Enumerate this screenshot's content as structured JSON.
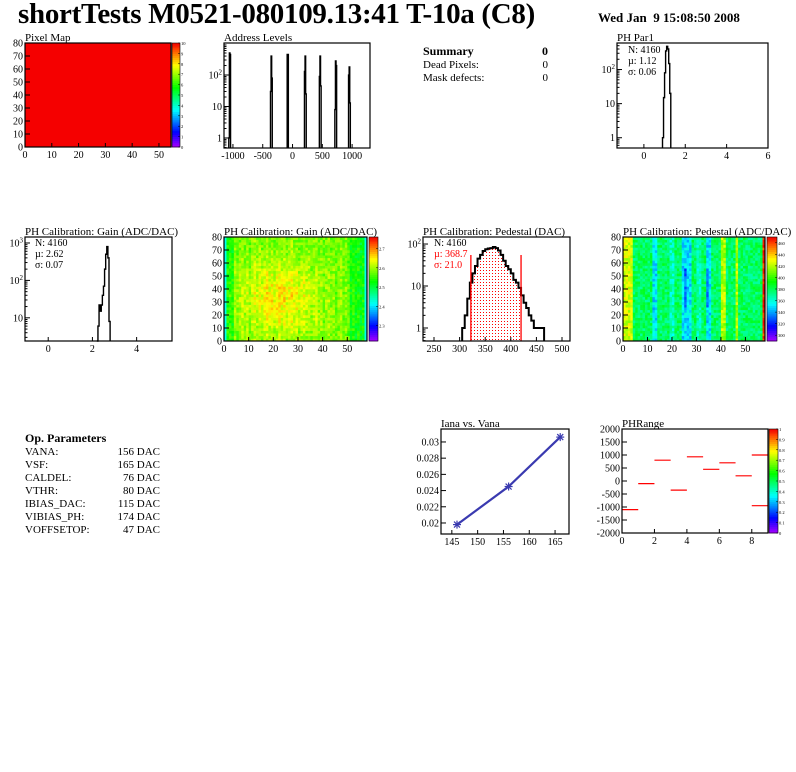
{
  "header": {
    "title": "shortTests M0521-080109.13:41 T-10a (C8)",
    "date": "Wed Jan  9 15:08:50 2008"
  },
  "summary": {
    "title": "Summary",
    "value": "0",
    "rows": [
      {
        "label": "Dead Pixels:",
        "value": "0"
      },
      {
        "label": "Mask defects:",
        "value": "0"
      }
    ]
  },
  "op_parameters": {
    "title": "Op. Parameters",
    "rows": [
      {
        "label": "VANA:",
        "value": "156 DAC"
      },
      {
        "label": "VSF:",
        "value": "165 DAC"
      },
      {
        "label": "CALDEL:",
        "value": "76 DAC"
      },
      {
        "label": "VTHR:",
        "value": "80 DAC"
      },
      {
        "label": "IBIAS_DAC:",
        "value": "115 DAC"
      },
      {
        "label": "VIBIAS_PH:",
        "value": "174 DAC"
      },
      {
        "label": "VOFFSETOP:",
        "value": "47 DAC"
      }
    ]
  },
  "colors": {
    "histogram_line": "#000000",
    "pedestal_fit": "#ff0000",
    "iana_line": "#3a3ab0",
    "phrange_line": "#ff0000"
  },
  "chart_data": [
    {
      "id": "pixel_map",
      "type": "heatmap",
      "title": "Pixel Map",
      "xlim": [
        0,
        54.5
      ],
      "ylim": [
        0,
        80
      ],
      "xticks": [
        0,
        10,
        20,
        30,
        40,
        50
      ],
      "yticks": [
        0,
        10,
        20,
        30,
        40,
        50,
        60,
        70,
        80
      ],
      "zlim": [
        0,
        10
      ],
      "zticks": [
        0,
        1,
        2,
        3,
        4,
        5,
        6,
        7,
        8,
        9,
        10
      ],
      "uniform_value": 10
    },
    {
      "id": "address_levels",
      "type": "bar",
      "title": "Address Levels",
      "xlim": [
        -1150,
        1300
      ],
      "ylim": [
        0.48,
        1040
      ],
      "log_y": true,
      "xticks": [
        -1000,
        -500,
        0,
        500,
        1000
      ],
      "yticks": [
        1,
        10,
        100
      ],
      "ytick_labels": [
        "1",
        "10",
        "10^2"
      ],
      "bin_width": 10,
      "bins": [
        [
          -1070,
          1
        ],
        [
          -1060,
          500
        ],
        [
          -1050,
          450
        ],
        [
          -370,
          30
        ],
        [
          -360,
          400
        ],
        [
          -350,
          80
        ],
        [
          -90,
          450
        ],
        [
          -80,
          450
        ],
        [
          200,
          130
        ],
        [
          210,
          400
        ],
        [
          220,
          25
        ],
        [
          450,
          90
        ],
        [
          460,
          400
        ],
        [
          470,
          45
        ],
        [
          710,
          8
        ],
        [
          720,
          280
        ],
        [
          730,
          200
        ],
        [
          940,
          100
        ],
        [
          950,
          180
        ],
        [
          960,
          13
        ]
      ]
    },
    {
      "id": "ph_par1",
      "type": "bar",
      "title": "PH Par1",
      "xlim": [
        -1.3,
        6
      ],
      "ylim": [
        0.5,
        600
      ],
      "log_y": true,
      "xticks": [
        0,
        2,
        4,
        6
      ],
      "yticks": [
        1,
        10,
        100
      ],
      "ytick_labels": [
        "1",
        "10",
        "10^2"
      ],
      "bin_width": 0.05,
      "bins": [
        [
          0.9,
          1
        ],
        [
          0.95,
          15
        ],
        [
          1.0,
          80
        ],
        [
          1.05,
          350
        ],
        [
          1.1,
          480
        ],
        [
          1.15,
          400
        ],
        [
          1.2,
          150
        ],
        [
          1.25,
          20
        ]
      ],
      "stats": [
        "N: 4160",
        "µ: 1.12",
        "σ: 0.06"
      ]
    },
    {
      "id": "gain_hist",
      "type": "bar",
      "title": "PH Calibration: Gain (ADC/DAC)",
      "xlim": [
        -1.05,
        5.6
      ],
      "ylim": [
        2.4,
        1445
      ],
      "log_y": true,
      "xticks": [
        0,
        2,
        4
      ],
      "yticks": [
        10,
        100,
        1000
      ],
      "ytick_labels": [
        "10",
        "10^2",
        "10^3"
      ],
      "bin_width": 0.05,
      "bins": [
        [
          2.2,
          2
        ],
        [
          2.25,
          6
        ],
        [
          2.3,
          22
        ],
        [
          2.35,
          15
        ],
        [
          2.4,
          22
        ],
        [
          2.45,
          40
        ],
        [
          2.5,
          70
        ],
        [
          2.55,
          200
        ],
        [
          2.6,
          500
        ],
        [
          2.65,
          800
        ],
        [
          2.7,
          400
        ],
        [
          2.75,
          8
        ]
      ],
      "stats": [
        "N: 4160",
        "µ: 2.62",
        "σ: 0.07"
      ]
    },
    {
      "id": "gain_map",
      "type": "heatmap",
      "title": "PH Calibration: Gain (ADC/DAC)",
      "xlim": [
        0,
        58
      ],
      "ylim": [
        0,
        80
      ],
      "xticks": [
        0,
        10,
        20,
        30,
        40,
        50
      ],
      "yticks": [
        0,
        10,
        20,
        30,
        40,
        50,
        60,
        70,
        80
      ],
      "zlim": [
        2.22,
        2.76
      ],
      "zticks": [
        2.3,
        2.4,
        2.5,
        2.6,
        2.7
      ],
      "mean": 2.62
    },
    {
      "id": "pedestal_hist",
      "type": "bar",
      "title": "PH Calibration: Pedestal (DAC)",
      "xlim": [
        228.5,
        515.6
      ],
      "ylim": [
        0.49,
        147
      ],
      "log_y": true,
      "xticks": [
        250,
        300,
        350,
        400,
        450,
        500
      ],
      "yticks": [
        1,
        10,
        100
      ],
      "ytick_labels": [
        "1",
        "10",
        "10^2"
      ],
      "bin_width": 5,
      "bins": [
        [
          305,
          1
        ],
        [
          310,
          2
        ],
        [
          315,
          5
        ],
        [
          320,
          12
        ],
        [
          325,
          20
        ],
        [
          330,
          30
        ],
        [
          335,
          45
        ],
        [
          340,
          55
        ],
        [
          345,
          68
        ],
        [
          350,
          75
        ],
        [
          355,
          78
        ],
        [
          360,
          80
        ],
        [
          365,
          85
        ],
        [
          370,
          80
        ],
        [
          375,
          70
        ],
        [
          380,
          55
        ],
        [
          385,
          40
        ],
        [
          390,
          30
        ],
        [
          395,
          25
        ],
        [
          400,
          20
        ],
        [
          405,
          14
        ],
        [
          410,
          12
        ],
        [
          415,
          9
        ],
        [
          420,
          6
        ],
        [
          425,
          4
        ],
        [
          430,
          3
        ],
        [
          435,
          2
        ],
        [
          440,
          1.5
        ],
        [
          445,
          1
        ],
        [
          450,
          1
        ],
        [
          455,
          1
        ],
        [
          460,
          1
        ]
      ],
      "fit_range": [
        322,
        420
      ],
      "stats": [
        "N: 4160",
        "µ: 368.7",
        "σ: 21.0"
      ]
    },
    {
      "id": "pedestal_map",
      "type": "heatmap",
      "title": "PH Calibration: Pedestal (ADC/DAC)",
      "xlim": [
        0,
        58
      ],
      "ylim": [
        0,
        80
      ],
      "xticks": [
        0,
        10,
        20,
        30,
        40,
        50
      ],
      "yticks": [
        0,
        10,
        20,
        30,
        40,
        50,
        60,
        70,
        80
      ],
      "zlim": [
        290,
        470
      ],
      "zticks": [
        300,
        320,
        340,
        360,
        380,
        400,
        420,
        440,
        460
      ]
    },
    {
      "id": "iana_vs_vana",
      "type": "line",
      "title": "Iana vs. Vana",
      "xlim": [
        142.9,
        167.7
      ],
      "ylim": [
        0.01864,
        0.0316
      ],
      "xticks": [
        145,
        150,
        155,
        160,
        165
      ],
      "yticks": [
        0.02,
        0.022,
        0.024,
        0.026,
        0.028,
        0.03
      ],
      "ytick_labels": [
        "0.02",
        "0.022",
        "0.024",
        "0.026",
        "0.028",
        "0.03"
      ],
      "points": [
        [
          146,
          0.0198
        ],
        [
          156,
          0.0245
        ],
        [
          166,
          0.0306
        ]
      ]
    },
    {
      "id": "ph_range",
      "type": "scatter",
      "title": "PHRange",
      "xlim": [
        0,
        9
      ],
      "ylim": [
        -2000,
        2000
      ],
      "xticks": [
        0,
        2,
        4,
        6,
        8
      ],
      "yticks": [
        -2000,
        -1500,
        -1000,
        -500,
        0,
        500,
        1000,
        1500,
        2000
      ],
      "zlim": [
        0,
        1
      ],
      "zticks": [
        0,
        0.1,
        0.2,
        0.3,
        0.4,
        0.5,
        0.6,
        0.7,
        0.8,
        0.9,
        1
      ],
      "segments": [
        [
          0,
          -1100
        ],
        [
          1,
          -100
        ],
        [
          2,
          800
        ],
        [
          3,
          -350
        ],
        [
          4,
          930
        ],
        [
          5,
          450
        ],
        [
          6,
          700
        ],
        [
          7,
          200
        ],
        [
          8,
          1000
        ],
        [
          8,
          -950
        ]
      ]
    }
  ]
}
